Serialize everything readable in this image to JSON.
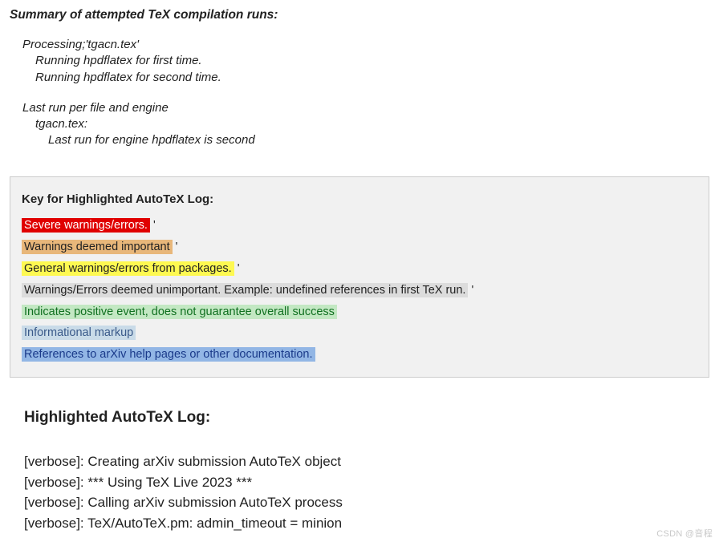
{
  "summary": {
    "title": "Summary of attempted TeX compilation runs:",
    "block1": {
      "l1": "Processing;'tgacn.tex'",
      "l2": "Running hpdflatex for first time.",
      "l3": "Running hpdflatex for second time."
    },
    "block2": {
      "l1": "Last run per file and engine",
      "l2": "tgacn.tex:",
      "l3": "Last run for engine hpdflatex is second"
    }
  },
  "key": {
    "title": "Key for Highlighted AutoTeX Log:",
    "items": [
      {
        "text": "Severe warnings/errors.",
        "trail": " '",
        "bg": "#e00000",
        "fg": "#ffffff"
      },
      {
        "text": "Warnings deemed important",
        "trail": " '",
        "bg": "#e8b77a",
        "fg": "#222222"
      },
      {
        "text": "General warnings/errors from packages.",
        "trail": " '",
        "bg": "#fef951",
        "fg": "#222222"
      },
      {
        "text": "Warnings/Errors deemed unimportant. Example: undefined references in first TeX run.",
        "trail": " '",
        "bg": "#dcdcdc",
        "fg": "#222222"
      },
      {
        "text": "Indicates positive event, does not guarantee overall success",
        "trail": "",
        "bg": "#c3e8c3",
        "fg": "#107020"
      },
      {
        "text": "Informational markup",
        "trail": "",
        "bg": "#c9dbe8",
        "fg": "#3a5a8a"
      },
      {
        "text": "References to arXiv help pages or other documentation.",
        "trail": "",
        "bg": "#92b6e5",
        "fg": "#1a3a8a"
      }
    ]
  },
  "log": {
    "title": "Highlighted AutoTeX Log:",
    "lines": [
      "[verbose]: Creating arXiv submission AutoTeX object",
      "[verbose]: *** Using TeX Live 2023 ***",
      "[verbose]: Calling arXiv submission AutoTeX process",
      "[verbose]: TeX/AutoTeX.pm: admin_timeout = minion"
    ]
  },
  "watermark": "CSDN @音程"
}
